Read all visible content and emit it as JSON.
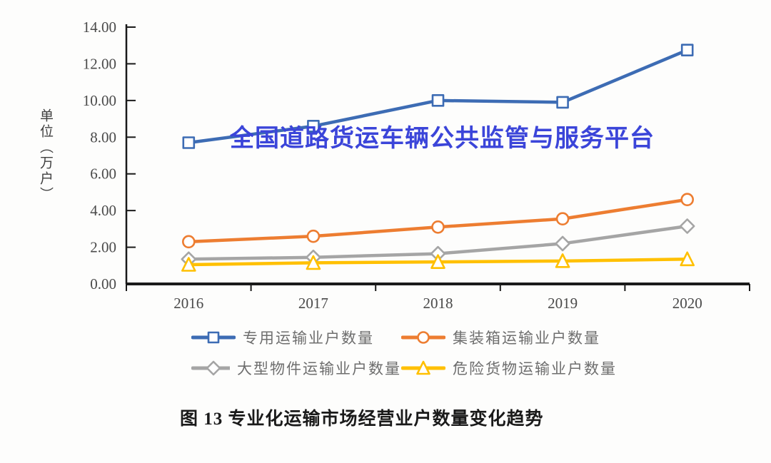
{
  "watermark": {
    "text": "全国道路货运车辆公共监管与服务平台",
    "color": "#3b45d9"
  },
  "caption": "图 13 专业化运输市场经营业户数量变化趋势",
  "axes": {
    "y_title": "单位（万户）",
    "ytick_labels": [
      "0.00",
      "2.00",
      "4.00",
      "6.00",
      "8.00",
      "10.00",
      "12.00",
      "14.00"
    ],
    "axis_color": "#1a1a1a",
    "tick_label_color": "#4a4a4a"
  },
  "chart_data": {
    "type": "line",
    "title": "",
    "xlabel": "",
    "ylabel": "单位（万户）",
    "categories": [
      "2016",
      "2017",
      "2018",
      "2019",
      "2020"
    ],
    "series": [
      {
        "name": "专用运输业户数量",
        "marker": "square",
        "color": "#3d6cb4",
        "values": [
          7.7,
          8.6,
          10.0,
          9.9,
          12.75
        ]
      },
      {
        "name": "集装箱运输业户数量",
        "marker": "circle",
        "color": "#ed7d31",
        "values": [
          2.3,
          2.6,
          3.1,
          3.55,
          4.6
        ]
      },
      {
        "name": "大型物件运输业户数量",
        "marker": "diamond",
        "color": "#a5a5a5",
        "values": [
          1.35,
          1.45,
          1.65,
          2.2,
          3.15
        ]
      },
      {
        "name": "危险货物运输业户数量",
        "marker": "triangle",
        "color": "#ffc000",
        "values": [
          1.05,
          1.15,
          1.2,
          1.25,
          1.35
        ]
      }
    ],
    "ylim": [
      0,
      14
    ],
    "ytick_step": 2,
    "grid": false,
    "legend_position": "bottom"
  }
}
